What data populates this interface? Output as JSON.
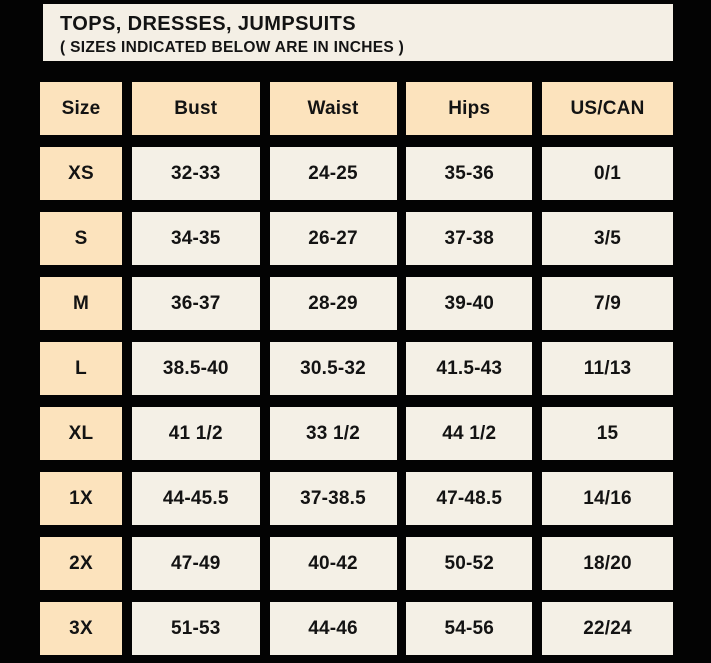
{
  "title_block": {
    "title": "TOPS, DRESSES, JUMPSUITS",
    "subtitle": "( SIZES INDICATED BELOW ARE IN INCHES )"
  },
  "chart_data": {
    "type": "table",
    "title": "TOPS, DRESSES, JUMPSUITS",
    "subtitle": "( SIZES INDICATED BELOW ARE IN INCHES )",
    "unit": "inches",
    "columns": [
      "Size",
      "Bust",
      "Waist",
      "Hips",
      "US/CAN"
    ],
    "rows": [
      [
        "XS",
        "32-33",
        "24-25",
        "35-36",
        "0/1"
      ],
      [
        "S",
        "34-35",
        "26-27",
        "37-38",
        "3/5"
      ],
      [
        "M",
        "36-37",
        "28-29",
        "39-40",
        "7/9"
      ],
      [
        "L",
        "38.5-40",
        "30.5-32",
        "41.5-43",
        "11/13"
      ],
      [
        "XL",
        "41 1/2",
        "33 1/2",
        "44 1/2",
        "15"
      ],
      [
        "1X",
        "44-45.5",
        "37-38.5",
        "47-48.5",
        "14/16"
      ],
      [
        "2X",
        "47-49",
        "40-42",
        "50-52",
        "18/20"
      ],
      [
        "3X",
        "51-53",
        "44-46",
        "54-56",
        "22/24"
      ]
    ]
  },
  "colors": {
    "background": "#030303",
    "title_box_bg": "#f4efe5",
    "header_cell_bg": "#fce3bd",
    "data_cell_bg": "#f4f0e6",
    "text": "#131313"
  }
}
